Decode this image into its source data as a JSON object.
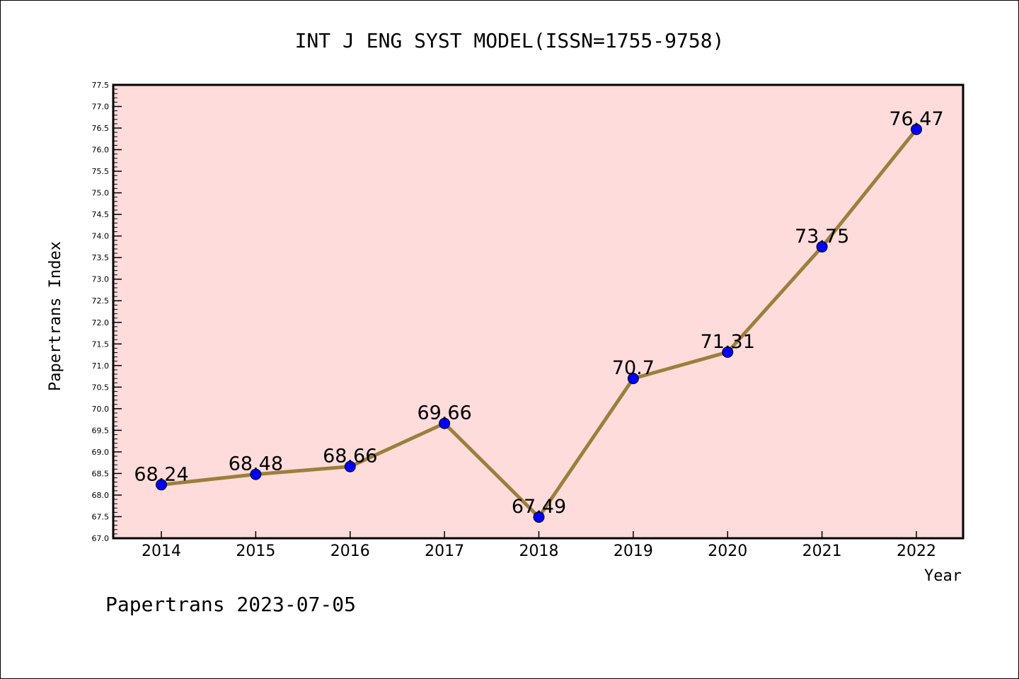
{
  "chart_data": {
    "type": "line",
    "title": "INT J ENG SYST MODEL(ISSN=1755-9758)",
    "xlabel": "Year",
    "ylabel": "Papertrans Index",
    "categories": [
      "2014",
      "2015",
      "2016",
      "2017",
      "2018",
      "2019",
      "2020",
      "2021",
      "2022"
    ],
    "series": [
      {
        "values": [
          68.24,
          68.48,
          68.66,
          69.66,
          67.49,
          70.7,
          71.31,
          73.75,
          76.47
        ],
        "labels": [
          "68.24",
          "68.48",
          "68.66",
          "69.66",
          "67.49",
          "70.7",
          "71.31",
          "73.75",
          "76.47"
        ]
      }
    ],
    "ylim": [
      67.0,
      77.5
    ],
    "yticks": [
      "67.0",
      "67.5",
      "68.0",
      "68.5",
      "69.0",
      "69.5",
      "70.0",
      "70.5",
      "71.0",
      "71.5",
      "72.0",
      "72.5",
      "73.0",
      "73.5",
      "74.0",
      "74.5",
      "75.0",
      "75.5",
      "76.0",
      "76.5",
      "77.0",
      "77.5"
    ],
    "grid": false,
    "colors": {
      "plot_background": "#ffdcdc",
      "line": "#9b7f3c",
      "marker": "#0000ff"
    }
  },
  "footer": {
    "source": "Papertrans 2023-07-05"
  }
}
